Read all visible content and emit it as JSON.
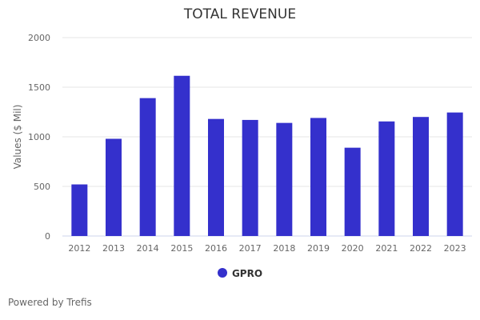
{
  "chart_data": {
    "type": "bar",
    "title": "TOTAL REVENUE",
    "xlabel": "",
    "ylabel": "Values ($ Mil)",
    "ylim": [
      0,
      2000
    ],
    "yticks": [
      0,
      500,
      1000,
      1500,
      2000
    ],
    "categories": [
      "2012",
      "2013",
      "2014",
      "2015",
      "2016",
      "2017",
      "2018",
      "2019",
      "2020",
      "2021",
      "2022",
      "2023"
    ],
    "series": [
      {
        "name": "GPRO",
        "color": "#3430cc",
        "values": [
          520,
          980,
          1390,
          1615,
          1180,
          1170,
          1140,
          1190,
          890,
          1155,
          1200,
          1245
        ]
      }
    ],
    "grid": true,
    "legend": "bottom-center"
  },
  "footer": "Powered by Trefis"
}
